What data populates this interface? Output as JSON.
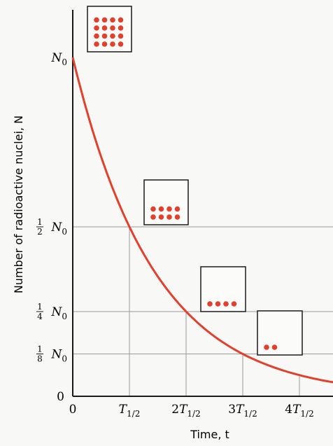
{
  "chart_data": {
    "type": "line",
    "title": "",
    "xlabel": "Time, t",
    "ylabel": "Number of radioactive nuclei, N",
    "x_unit": "half-lives",
    "xlim": [
      0,
      4.6
    ],
    "ylim": [
      0,
      1
    ],
    "x_ticks": [
      {
        "value": 0,
        "label": "0"
      },
      {
        "value": 1,
        "label": "T1/2"
      },
      {
        "value": 2,
        "label": "2T1/2"
      },
      {
        "value": 3,
        "label": "3T1/2"
      },
      {
        "value": 4,
        "label": "4T1/2"
      }
    ],
    "y_ticks": [
      {
        "value": 0,
        "label": "0"
      },
      {
        "value": 0.125,
        "label": "1/8 N0"
      },
      {
        "value": 0.25,
        "label": "1/4 N0"
      },
      {
        "value": 0.5,
        "label": "1/2 N0"
      },
      {
        "value": 1,
        "label": "N0"
      }
    ],
    "series": [
      {
        "x": [
          0,
          0.5,
          1,
          1.5,
          2,
          2.5,
          3,
          3.5,
          4,
          4.5
        ],
        "y": [
          1,
          0.707,
          0.5,
          0.354,
          0.25,
          0.177,
          0.125,
          0.088,
          0.0625,
          0.044
        ],
        "color": "#e2402c"
      }
    ],
    "guide_points": [
      {
        "x": 1,
        "y": 0.5
      },
      {
        "x": 2,
        "y": 0.25
      },
      {
        "x": 3,
        "y": 0.125
      }
    ],
    "insets": [
      {
        "at_x": 0,
        "nuclei_count": 16
      },
      {
        "at_x": 1,
        "nuclei_count": 8
      },
      {
        "at_x": 2,
        "nuclei_count": 4
      },
      {
        "at_x": 3,
        "nuclei_count": 2
      }
    ],
    "colors": {
      "curve": "#e2402c",
      "nucleus": "#e2402c",
      "grid": "#9a9a9a",
      "axis": "#1a1a1a"
    }
  }
}
